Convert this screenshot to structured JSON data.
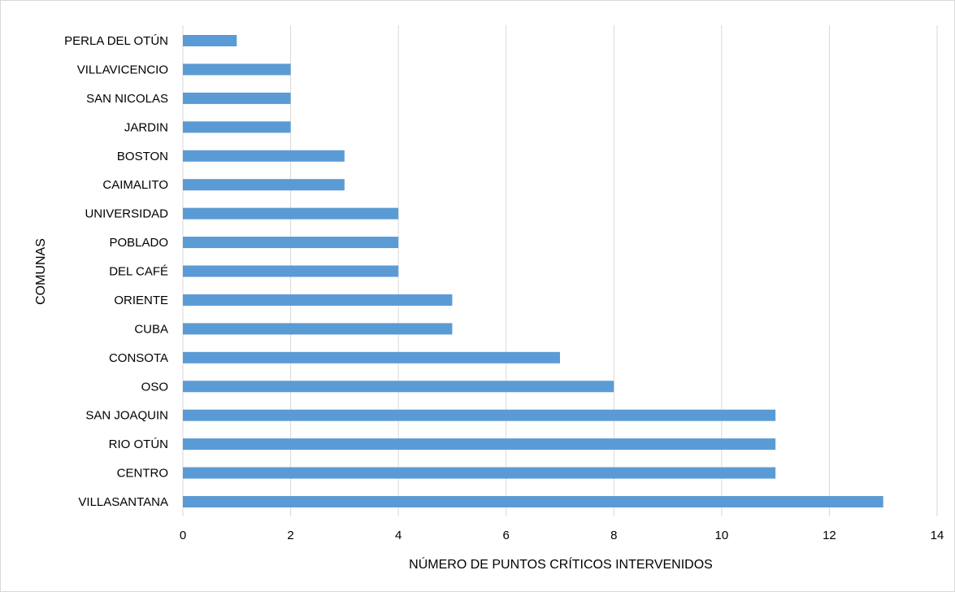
{
  "chart_data": {
    "type": "bar",
    "orientation": "horizontal",
    "categories": [
      "PERLA DEL OTÚN",
      "VILLAVICENCIO",
      "SAN NICOLAS",
      "JARDIN",
      "BOSTON",
      "CAIMALITO",
      "UNIVERSIDAD",
      "POBLADO",
      "DEL CAFÉ",
      "ORIENTE",
      "CUBA",
      "CONSOTA",
      "OSO",
      "SAN JOAQUIN",
      "RIO OTÚN",
      "CENTRO",
      "VILLASANTANA"
    ],
    "values": [
      1,
      2,
      2,
      2,
      3,
      3,
      4,
      4,
      4,
      5,
      5,
      7,
      8,
      11,
      11,
      11,
      13
    ],
    "xlabel": "NÚMERO  DE PUNTOS CRÍTICOS INTERVENIDOS",
    "ylabel": "COMUNAS",
    "xlim": [
      0,
      14
    ],
    "xticks": [
      "0",
      "2",
      "4",
      "6",
      "8",
      "10",
      "12",
      "14"
    ],
    "grid": "vertical",
    "legend": "none",
    "bar_color": "#5B9BD5",
    "grid_color": "#d9d9d9"
  }
}
